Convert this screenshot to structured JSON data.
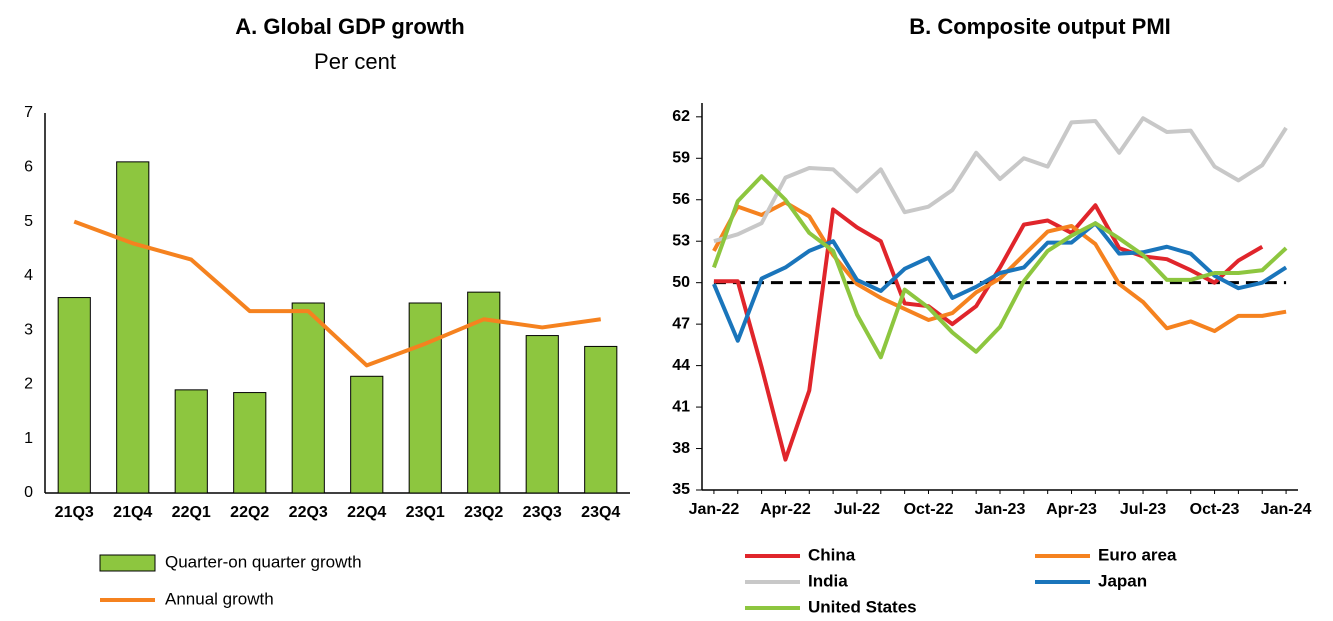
{
  "chart_data": [
    {
      "type": "bar",
      "title": "A. Global GDP growth",
      "subtitle": "Per cent",
      "categories": [
        "21Q3",
        "21Q4",
        "22Q1",
        "22Q2",
        "22Q3",
        "22Q4",
        "23Q1",
        "23Q2",
        "23Q3",
        "23Q4"
      ],
      "series": [
        {
          "name": "Quarter-on quarter growth",
          "mark": "bar",
          "color": "#8dc63f",
          "values": [
            3.6,
            6.1,
            1.9,
            1.85,
            3.5,
            2.15,
            3.5,
            3.7,
            2.9,
            2.7
          ]
        },
        {
          "name": "Annual growth",
          "mark": "line",
          "color": "#f5821f",
          "values": [
            5.0,
            4.6,
            4.3,
            3.35,
            3.35,
            2.35,
            2.75,
            3.2,
            3.05,
            3.2
          ]
        }
      ],
      "ylim": [
        0,
        7
      ],
      "yticks": [
        0,
        1,
        2,
        3,
        4,
        5,
        6,
        7
      ],
      "grid": false,
      "legend": "bottom"
    },
    {
      "type": "line",
      "title": "B. Composite output PMI",
      "categories": [
        "Jan-22",
        null,
        null,
        "Apr-22",
        null,
        null,
        "Jul-22",
        null,
        null,
        "Oct-22",
        null,
        null,
        "Jan-23",
        null,
        null,
        "Apr-23",
        null,
        null,
        "Jul-23",
        null,
        null,
        "Oct-23",
        null,
        null,
        "Jan-24"
      ],
      "series": [
        {
          "name": "China",
          "color": "#e0252b",
          "values": [
            50.1,
            50.1,
            43.9,
            37.2,
            42.2,
            55.3,
            54.0,
            53.0,
            48.5,
            48.3,
            47.0,
            48.3,
            51.1,
            54.2,
            54.5,
            53.6,
            55.6,
            52.5,
            51.9,
            51.7,
            50.9,
            50.0,
            51.6,
            52.6,
            null
          ]
        },
        {
          "name": "Euro area",
          "color": "#f5821f",
          "values": [
            52.3,
            55.5,
            54.9,
            55.8,
            54.8,
            52.0,
            49.9,
            48.9,
            48.1,
            47.3,
            47.8,
            49.3,
            50.3,
            52.0,
            53.7,
            54.1,
            52.8,
            49.9,
            48.6,
            46.7,
            47.2,
            46.5,
            47.6,
            47.6,
            47.9
          ]
        },
        {
          "name": "India",
          "color": "#c8c8c8",
          "values": [
            53.0,
            53.5,
            54.3,
            57.6,
            58.3,
            58.2,
            56.6,
            58.2,
            55.1,
            55.5,
            56.7,
            59.4,
            57.5,
            59.0,
            58.4,
            61.6,
            61.7,
            59.4,
            61.9,
            60.9,
            61.0,
            58.4,
            57.4,
            58.5,
            61.2
          ]
        },
        {
          "name": "Japan",
          "color": "#1a75bb",
          "values": [
            49.9,
            45.8,
            50.3,
            51.1,
            52.3,
            53.0,
            50.2,
            49.4,
            51.0,
            51.8,
            48.9,
            49.7,
            50.7,
            51.1,
            52.9,
            52.9,
            54.3,
            52.1,
            52.2,
            52.6,
            52.1,
            50.5,
            49.6,
            50.0,
            51.1
          ]
        },
        {
          "name": "United States",
          "color": "#8dc63f",
          "values": [
            51.1,
            55.9,
            57.7,
            56.0,
            53.6,
            52.3,
            47.7,
            44.6,
            49.5,
            48.2,
            46.4,
            45.0,
            46.8,
            50.1,
            52.3,
            53.4,
            54.3,
            53.2,
            52.0,
            50.2,
            50.2,
            50.7,
            50.7,
            50.9,
            52.5
          ]
        }
      ],
      "hline": 50,
      "ylim": [
        35,
        63
      ],
      "yticks": [
        35,
        38,
        41,
        44,
        47,
        50,
        53,
        56,
        59,
        62
      ],
      "grid": false,
      "legend": "bottom"
    }
  ]
}
